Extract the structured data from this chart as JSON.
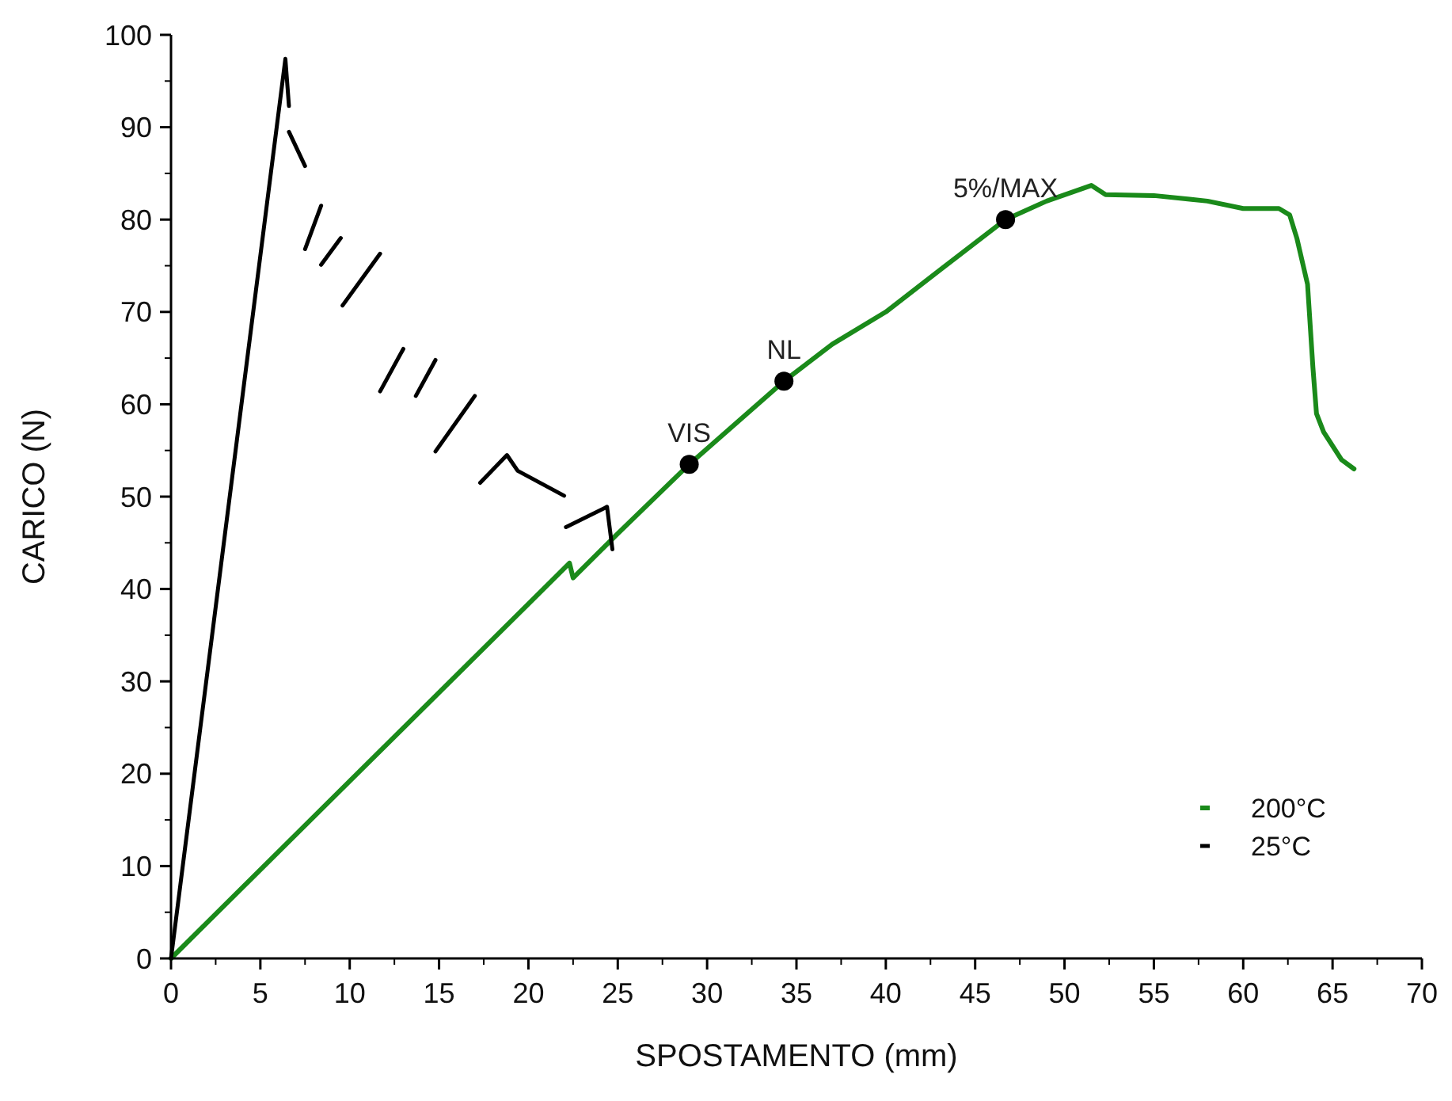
{
  "chart_data": {
    "type": "line",
    "xlabel": "SPOSTAMENTO (mm)",
    "ylabel": "CARICO (N)",
    "xlim": [
      0,
      70
    ],
    "ylim": [
      0,
      100
    ],
    "xticks": [
      0,
      5,
      10,
      15,
      20,
      25,
      30,
      35,
      40,
      45,
      50,
      55,
      60,
      65,
      70
    ],
    "yticks": [
      0,
      10,
      20,
      30,
      40,
      50,
      60,
      70,
      80,
      90,
      100
    ],
    "grid": false,
    "legend": "bottom right",
    "series": [
      {
        "name": "200°C",
        "color": "#1a8a1a",
        "x": [
          0,
          10,
          22.3,
          22.5,
          25,
          29,
          34.3,
          37,
          40,
          43,
          46.7,
          49,
          51.5,
          52.3,
          55,
          57,
          58,
          60,
          62,
          62.6,
          63,
          63.6,
          63.9,
          64.1,
          64.5,
          65.5,
          66.2
        ],
        "values": [
          0,
          19.2,
          42.8,
          41.2,
          46,
          53.5,
          62.5,
          66.5,
          70,
          74.5,
          80,
          82,
          83.7,
          82.7,
          82.6,
          82.2,
          82,
          81.2,
          81.2,
          80.5,
          78,
          73,
          64,
          59,
          57,
          54,
          53
        ]
      },
      {
        "name": "25°C",
        "color": "#000000",
        "x": [
          0,
          6.4,
          6.6,
          null,
          6.6,
          7.5,
          null,
          7.5,
          8.4,
          null,
          8.4,
          9.5,
          null,
          9.6,
          11.7,
          null,
          11.7,
          13.0,
          null,
          13.7,
          14.8,
          null,
          14.8,
          17.0,
          null,
          17.3,
          18.8,
          19.4,
          22.0,
          null,
          22.1,
          24.4,
          24.7
        ],
        "values": [
          0,
          97.4,
          92.3,
          null,
          89.5,
          85.8,
          null,
          76.8,
          81.5,
          null,
          75.1,
          78,
          null,
          70.7,
          76.3,
          null,
          61.4,
          66,
          null,
          60.9,
          64.8,
          null,
          54.9,
          60.9,
          null,
          51.5,
          54.5,
          52.8,
          50.1,
          null,
          46.7,
          48.9,
          44.3
        ]
      }
    ],
    "annotations": [
      {
        "text": "VIS",
        "x": 29,
        "y": 53.5
      },
      {
        "text": "NL",
        "x": 34.3,
        "y": 62.5
      },
      {
        "text": "5%/MAX",
        "x": 46.7,
        "y": 80
      }
    ]
  }
}
